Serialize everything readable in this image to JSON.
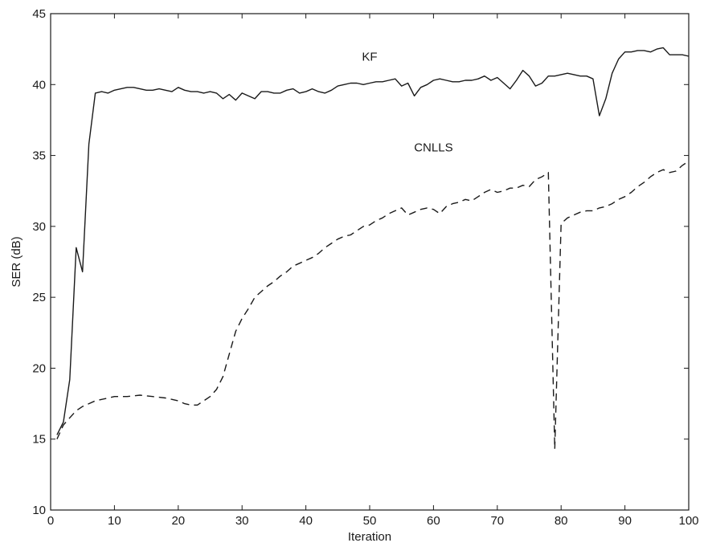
{
  "chart_data": {
    "type": "line",
    "title": "",
    "xlabel": "Iteration",
    "ylabel": "SER (dB)",
    "xlim": [
      0,
      100
    ],
    "ylim": [
      10,
      45
    ],
    "xticks": [
      0,
      10,
      20,
      30,
      40,
      50,
      60,
      70,
      80,
      90,
      100
    ],
    "yticks": [
      10,
      15,
      20,
      25,
      30,
      35,
      40,
      45
    ],
    "grid": false,
    "legend": "none",
    "series": [
      {
        "name": "KF",
        "style": "solid",
        "color": "#1a1a1a",
        "label_at": [
          50,
          41.7
        ],
        "x": [
          1,
          2,
          3,
          4,
          5,
          6,
          7,
          8,
          9,
          10,
          11,
          12,
          13,
          14,
          15,
          16,
          17,
          18,
          19,
          20,
          21,
          22,
          23,
          24,
          25,
          26,
          27,
          28,
          29,
          30,
          31,
          32,
          33,
          34,
          35,
          36,
          37,
          38,
          39,
          40,
          41,
          42,
          43,
          44,
          45,
          46,
          47,
          48,
          49,
          50,
          51,
          52,
          53,
          54,
          55,
          56,
          57,
          58,
          59,
          60,
          61,
          62,
          63,
          64,
          65,
          66,
          67,
          68,
          69,
          70,
          71,
          72,
          73,
          74,
          75,
          76,
          77,
          78,
          79,
          80,
          81,
          82,
          83,
          84,
          85,
          86,
          87,
          88,
          89,
          90,
          91,
          92,
          93,
          94,
          95,
          96,
          97,
          98,
          99,
          100
        ],
        "y": [
          15.3,
          16.2,
          19.2,
          28.5,
          26.8,
          35.8,
          39.4,
          39.5,
          39.4,
          39.6,
          39.7,
          39.8,
          39.8,
          39.7,
          39.6,
          39.6,
          39.7,
          39.6,
          39.5,
          39.8,
          39.6,
          39.5,
          39.5,
          39.4,
          39.5,
          39.4,
          39.0,
          39.3,
          38.9,
          39.4,
          39.2,
          39.0,
          39.5,
          39.5,
          39.4,
          39.4,
          39.6,
          39.7,
          39.4,
          39.5,
          39.7,
          39.5,
          39.4,
          39.6,
          39.9,
          40.0,
          40.1,
          40.1,
          40.0,
          40.1,
          40.2,
          40.2,
          40.3,
          40.4,
          39.9,
          40.1,
          39.2,
          39.8,
          40.0,
          40.3,
          40.4,
          40.3,
          40.2,
          40.2,
          40.3,
          40.3,
          40.4,
          40.6,
          40.3,
          40.5,
          40.1,
          39.7,
          40.3,
          41.0,
          40.6,
          39.9,
          40.1,
          40.6,
          40.6,
          40.7,
          40.8,
          40.7,
          40.6,
          40.6,
          40.4,
          37.8,
          39.0,
          40.8,
          41.8,
          42.3,
          42.3,
          42.4,
          42.4,
          42.3,
          42.5,
          42.6,
          42.1,
          42.1,
          42.1,
          42.0
        ]
      },
      {
        "name": "CNLLS",
        "style": "dashed",
        "color": "#1a1a1a",
        "label_at": [
          60,
          35.3
        ],
        "x": [
          1,
          2,
          3,
          4,
          5,
          6,
          7,
          8,
          9,
          10,
          12,
          14,
          16,
          18,
          20,
          21,
          22,
          23,
          24,
          25,
          26,
          27,
          28,
          29,
          30,
          31,
          32,
          33,
          34,
          35,
          36,
          37,
          38,
          39,
          40,
          41,
          42,
          43,
          44,
          45,
          46,
          47,
          48,
          49,
          50,
          51,
          52,
          53,
          54,
          55,
          56,
          57,
          58,
          59,
          60,
          61,
          62,
          63,
          64,
          65,
          66,
          67,
          68,
          69,
          70,
          71,
          72,
          73,
          74,
          75,
          76,
          77,
          78,
          79,
          80,
          81,
          82,
          83,
          84,
          85,
          86,
          87,
          88,
          89,
          90,
          91,
          92,
          93,
          94,
          95,
          96,
          97,
          98,
          99,
          100
        ],
        "y": [
          15.0,
          16.0,
          16.5,
          17.0,
          17.3,
          17.5,
          17.7,
          17.8,
          17.9,
          18.0,
          18.0,
          18.1,
          18.0,
          17.9,
          17.7,
          17.5,
          17.4,
          17.4,
          17.7,
          18.0,
          18.5,
          19.4,
          21.0,
          22.6,
          23.5,
          24.2,
          25.0,
          25.4,
          25.8,
          26.1,
          26.5,
          26.8,
          27.2,
          27.4,
          27.6,
          27.8,
          28.1,
          28.5,
          28.8,
          29.1,
          29.3,
          29.4,
          29.7,
          30.0,
          30.1,
          30.4,
          30.6,
          30.9,
          31.1,
          31.3,
          30.8,
          31.0,
          31.2,
          31.3,
          31.2,
          30.9,
          31.4,
          31.6,
          31.7,
          31.9,
          31.8,
          32.1,
          32.4,
          32.6,
          32.4,
          32.5,
          32.7,
          32.7,
          32.9,
          32.8,
          33.3,
          33.5,
          33.8,
          14.3,
          30.2,
          30.6,
          30.8,
          31.0,
          31.1,
          31.1,
          31.3,
          31.4,
          31.6,
          31.9,
          32.1,
          32.4,
          32.8,
          33.1,
          33.5,
          33.8,
          34.0,
          33.8,
          33.9,
          34.3,
          34.6
        ]
      }
    ]
  }
}
